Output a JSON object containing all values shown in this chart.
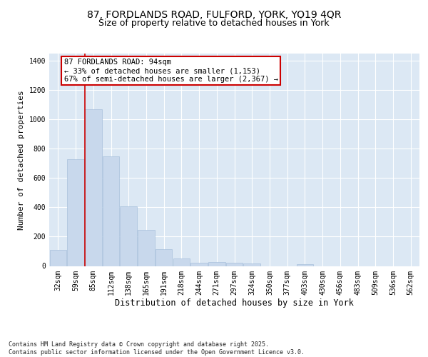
{
  "title_line1": "87, FORDLANDS ROAD, FULFORD, YORK, YO19 4QR",
  "title_line2": "Size of property relative to detached houses in York",
  "xlabel": "Distribution of detached houses by size in York",
  "ylabel": "Number of detached properties",
  "categories": [
    "32sqm",
    "59sqm",
    "85sqm",
    "112sqm",
    "138sqm",
    "165sqm",
    "191sqm",
    "218sqm",
    "244sqm",
    "271sqm",
    "297sqm",
    "324sqm",
    "350sqm",
    "377sqm",
    "403sqm",
    "430sqm",
    "456sqm",
    "483sqm",
    "509sqm",
    "536sqm",
    "562sqm"
  ],
  "values": [
    110,
    730,
    1070,
    750,
    405,
    245,
    115,
    50,
    22,
    28,
    22,
    18,
    0,
    0,
    10,
    0,
    0,
    0,
    0,
    0,
    0
  ],
  "bar_color": "#c8d8ec",
  "bar_edge_color": "#a8c0dc",
  "vline_x_index": 2,
  "vline_color": "#cc0000",
  "annotation_line1": "87 FORDLANDS ROAD: 94sqm",
  "annotation_line2": "← 33% of detached houses are smaller (1,153)",
  "annotation_line3": "67% of semi-detached houses are larger (2,367) →",
  "annotation_box_color": "#ffffff",
  "annotation_box_edge": "#cc0000",
  "ylim": [
    0,
    1450
  ],
  "yticks": [
    0,
    200,
    400,
    600,
    800,
    1000,
    1200,
    1400
  ],
  "background_color": "#ffffff",
  "plot_bg_color": "#dce8f4",
  "footer_text": "Contains HM Land Registry data © Crown copyright and database right 2025.\nContains public sector information licensed under the Open Government Licence v3.0.",
  "title_fontsize": 10,
  "subtitle_fontsize": 9,
  "tick_fontsize": 7,
  "ylabel_fontsize": 8,
  "xlabel_fontsize": 8.5,
  "annotation_fontsize": 7.5,
  "footer_fontsize": 6
}
